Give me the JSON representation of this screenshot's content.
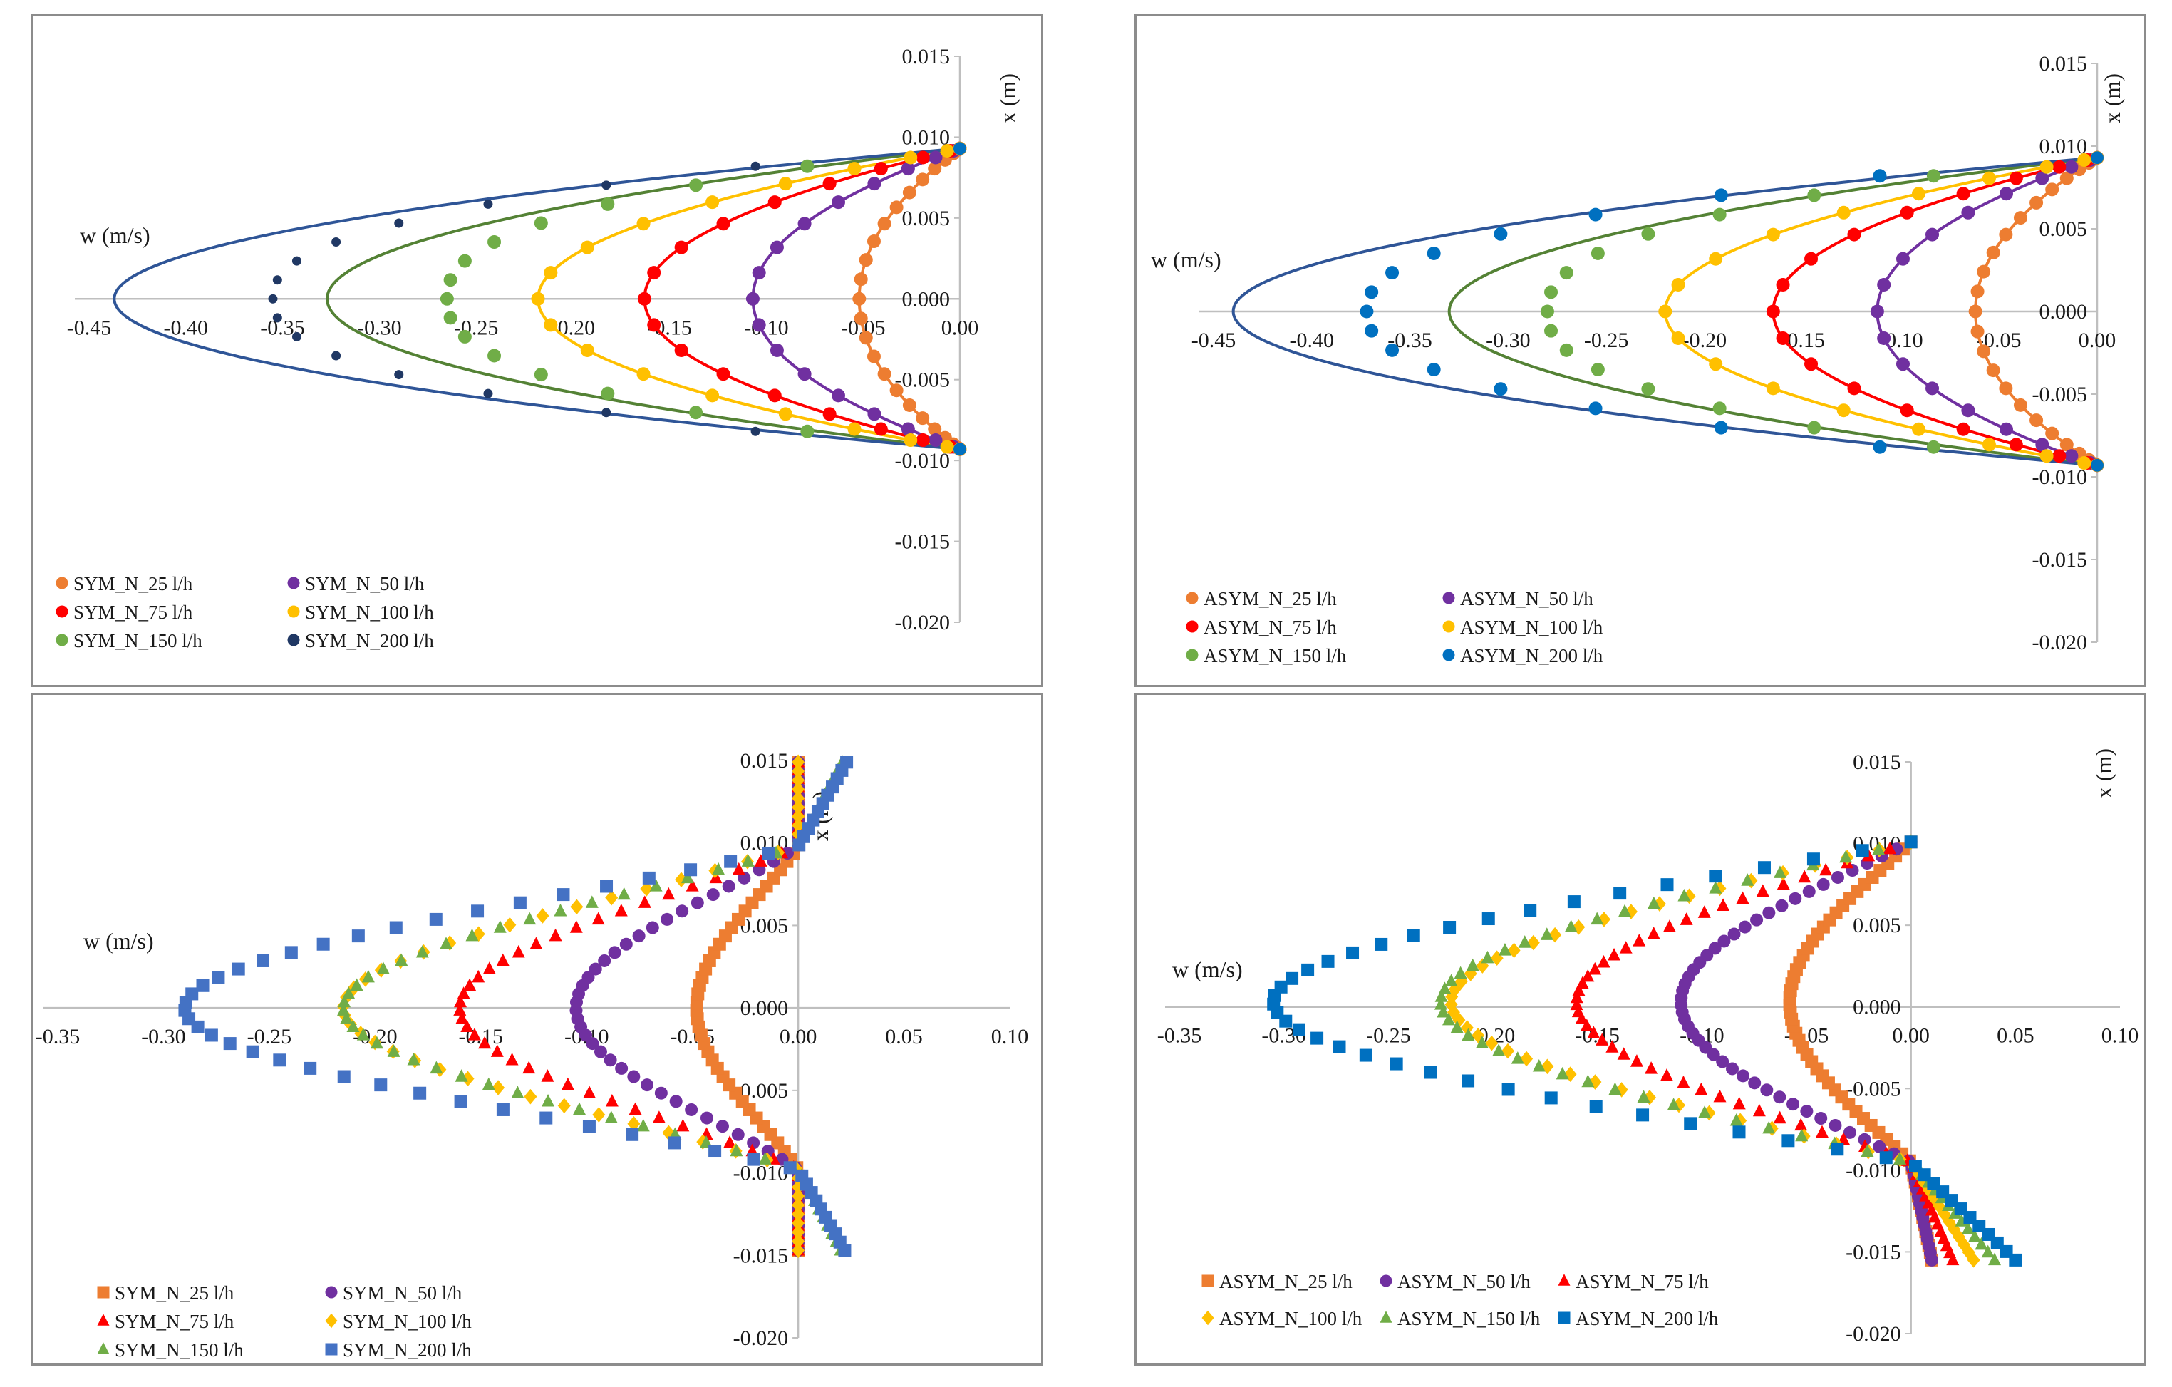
{
  "colors": {
    "c25": "#ED7D31",
    "c50": "#7030A0",
    "c75": "#FF0000",
    "c100": "#FFC000",
    "c150": "#70AD47",
    "c200sym": "#203864",
    "c200asym": "#0070C0",
    "c200sq": "#4472C4",
    "fit200": "#2F5597",
    "fit150": "#548235",
    "fit25": "#ED7D31"
  },
  "chart_data": [
    {
      "id": "p1",
      "type": "scatter",
      "title": "",
      "xlabel": "w (m/s)",
      "ylabel": "x (m)",
      "xlim": [
        -0.45,
        0.0
      ],
      "ylim": [
        -0.02,
        0.015
      ],
      "xticks": [
        "-0.45",
        "-0.40",
        "-0.35",
        "-0.30",
        "-0.25",
        "-0.20",
        "-0.15",
        "-0.10",
        "-0.05",
        "0.00"
      ],
      "yticks": [
        "0.015",
        "0.010",
        "0.005",
        "0.000",
        "-0.005",
        "-0.010",
        "-0.015",
        "-0.020"
      ],
      "legend_position": "bottom-left",
      "legend_cols": 2,
      "series": [
        {
          "name": "SYM_N_25 l/h",
          "color_key": "c25",
          "marker": "circle",
          "a": 0.052,
          "mode": "dense",
          "n": 25,
          "fit": true
        },
        {
          "name": "SYM_N_50 l/h",
          "color_key": "c50",
          "marker": "circle",
          "a": 0.107,
          "mode": "dense",
          "n": 19,
          "fit": true
        },
        {
          "name": "SYM_N_75 l/h",
          "color_key": "c75",
          "marker": "circle",
          "a": 0.163,
          "mode": "dense",
          "n": 19,
          "fit": true
        },
        {
          "name": "SYM_N_100 l/h",
          "color_key": "c100",
          "marker": "circle",
          "a": 0.218,
          "mode": "dense",
          "n": 19,
          "fit": true
        },
        {
          "name": "SYM_N_150 l/h",
          "color_key": "c150",
          "marker": "circle",
          "a": 0.265,
          "mode": "sparse",
          "n": 15,
          "fit": true,
          "fit_a": 0.327
        },
        {
          "name": "SYM_N_200 l/h",
          "color_key": "c200sym",
          "marker": "circle",
          "a": 0.355,
          "mode": "sparse",
          "n": 15,
          "fit": true,
          "fit_a": 0.437,
          "small": true
        }
      ]
    },
    {
      "id": "p2",
      "type": "scatter",
      "title": "",
      "xlabel": "w (m/s)",
      "ylabel": "x (m)",
      "xlim": [
        -0.45,
        0.0
      ],
      "ylim": [
        -0.02,
        0.015
      ],
      "xticks": [
        "-0.45",
        "-0.40",
        "-0.35",
        "-0.30",
        "-0.25",
        "-0.20",
        "-0.15",
        "-0.10",
        "-0.05",
        "0.00"
      ],
      "yticks": [
        "0.015",
        "0.010",
        "0.005",
        "0.000",
        "-0.005",
        "-0.010",
        "-0.015",
        "-0.020"
      ],
      "legend_position": "bottom-left",
      "legend_cols": 2,
      "series": [
        {
          "name": "ASYM_N_25 l/h",
          "color_key": "c25",
          "marker": "circle",
          "a": 0.062,
          "mode": "dense",
          "n": 25,
          "fit": true
        },
        {
          "name": "ASYM_N_50 l/h",
          "color_key": "c50",
          "marker": "circle",
          "a": 0.112,
          "mode": "dense",
          "n": 19,
          "fit": true
        },
        {
          "name": "ASYM_N_75 l/h",
          "color_key": "c75",
          "marker": "circle",
          "a": 0.165,
          "mode": "dense",
          "n": 19,
          "fit": true
        },
        {
          "name": "ASYM_N_100 l/h",
          "color_key": "c100",
          "marker": "circle",
          "a": 0.22,
          "mode": "dense",
          "n": 19,
          "fit": true
        },
        {
          "name": "ASYM_N_150 l/h",
          "color_key": "c150",
          "marker": "circle",
          "a": 0.28,
          "mode": "sparse",
          "n": 15,
          "fit": true,
          "fit_a": 0.33
        },
        {
          "name": "ASYM_N_200 l/h",
          "color_key": "c200asym",
          "marker": "circle",
          "a": 0.372,
          "mode": "sparse",
          "n": 15,
          "fit": true,
          "fit_a": 0.44
        }
      ]
    },
    {
      "id": "p3",
      "type": "scatter",
      "title": "",
      "xlabel": "w (m/s)",
      "ylabel": "x (m)",
      "xlim": [
        -0.35,
        0.1
      ],
      "ylim": [
        -0.02,
        0.015
      ],
      "xticks": [
        "-0.35",
        "-0.30",
        "-0.25",
        "-0.20",
        "-0.15",
        "-0.10",
        "-0.05",
        "0.00",
        "0.05",
        "0.10"
      ],
      "yticks": [
        "0.015",
        "0.010",
        "0.005",
        "0.000",
        "-0.005",
        "-0.010",
        "-0.015",
        "-0.020"
      ],
      "legend_position": "bottom-left",
      "legend_cols": 2,
      "series": [
        {
          "name": "SYM_N_25 l/h",
          "color_key": "c25",
          "marker": "square",
          "a": 0.048,
          "ext": 0.0,
          "mode": "ext",
          "n": 60
        },
        {
          "name": "SYM_N_50 l/h",
          "color_key": "c50",
          "marker": "circle",
          "a": 0.105,
          "ext": 0.0,
          "mode": "ext",
          "n": 60
        },
        {
          "name": "SYM_N_75 l/h",
          "color_key": "c75",
          "marker": "triangle",
          "a": 0.16,
          "ext": 0.0,
          "mode": "ext",
          "n": 60
        },
        {
          "name": "SYM_N_100 l/h",
          "color_key": "c100",
          "marker": "diamond",
          "a": 0.215,
          "ext": 0.0,
          "mode": "ext",
          "n": 55
        },
        {
          "name": "SYM_N_150 l/h",
          "color_key": "c150",
          "marker": "triangle",
          "a": 0.215,
          "ext": 0.02,
          "mode": "ext",
          "n": 60
        },
        {
          "name": "SYM_N_200 l/h",
          "color_key": "c200sq",
          "marker": "square",
          "a": 0.29,
          "ext": 0.022,
          "mode": "ext",
          "n": 60
        }
      ]
    },
    {
      "id": "p4",
      "type": "scatter",
      "title": "",
      "xlabel": "w (m/s)",
      "ylabel": "x (m)",
      "xlim": [
        -0.35,
        0.1
      ],
      "ylim": [
        -0.02,
        0.015
      ],
      "xticks": [
        "-0.35",
        "-0.30",
        "-0.25",
        "-0.20",
        "-0.15",
        "-0.10",
        "-0.05",
        "0.00",
        "0.05",
        "0.10"
      ],
      "yticks": [
        "0.015",
        "0.010",
        "0.005",
        "0.000",
        "-0.005",
        "-0.010",
        "-0.015",
        "-0.020"
      ],
      "legend_position": "bottom-left",
      "legend_cols": 3,
      "series": [
        {
          "name": "ASYM_N_25 l/h",
          "color_key": "c25",
          "marker": "square",
          "a": 0.058,
          "ext": 0.01,
          "mode": "asym",
          "n": 60
        },
        {
          "name": "ASYM_N_50 l/h",
          "color_key": "c50",
          "marker": "circle",
          "a": 0.11,
          "ext": 0.01,
          "mode": "asym",
          "n": 60
        },
        {
          "name": "ASYM_N_75 l/h",
          "color_key": "c75",
          "marker": "triangle",
          "a": 0.16,
          "ext": 0.02,
          "mode": "asym",
          "n": 60
        },
        {
          "name": "ASYM_N_100 l/h",
          "color_key": "c100",
          "marker": "diamond",
          "a": 0.22,
          "ext": 0.03,
          "mode": "asym",
          "n": 55
        },
        {
          "name": "ASYM_N_150 l/h",
          "color_key": "c150",
          "marker": "triangle",
          "a": 0.225,
          "ext": 0.04,
          "mode": "asym",
          "n": 55
        },
        {
          "name": "ASYM_N_200 l/h",
          "color_key": "c200asym",
          "marker": "square",
          "a": 0.305,
          "ext": 0.05,
          "mode": "asym",
          "n": 50
        }
      ]
    }
  ]
}
